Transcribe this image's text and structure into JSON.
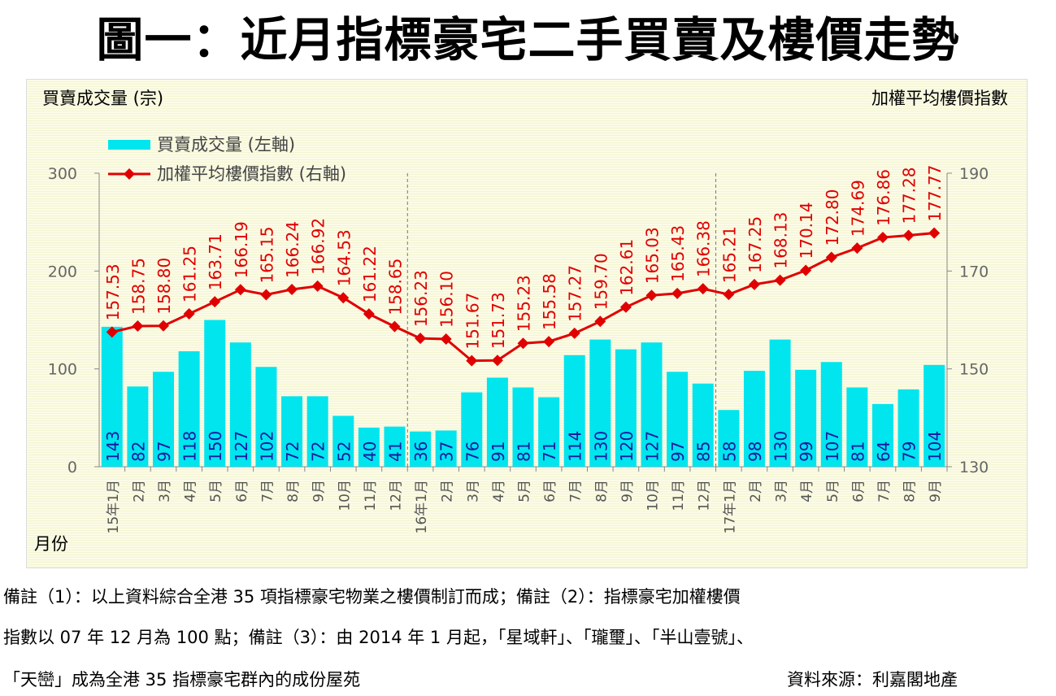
{
  "title": "圖一：近月指標豪宅二手買賣及樓價走勢",
  "chart_data": {
    "type": "bar+line",
    "title": "圖一：近月指標豪宅二手買賣及樓價走勢",
    "ylabel_left": "買賣成交量 (宗)",
    "ylabel_right": "加權平均樓價指數",
    "xlabel": "月份",
    "ylim_left": [
      0,
      300
    ],
    "yticks_left": [
      "0",
      "100",
      "200",
      "300"
    ],
    "ylim_right": [
      130,
      190
    ],
    "yticks_right": [
      "130",
      "150",
      "170",
      "190"
    ],
    "categories": [
      "15年1月",
      "2月",
      "3月",
      "4月",
      "5月",
      "6月",
      "7月",
      "8月",
      "9月",
      "10月",
      "11月",
      "12月",
      "16年1月",
      "2月",
      "3月",
      "4月",
      "5月",
      "6月",
      "7月",
      "8月",
      "9月",
      "10月",
      "11月",
      "12月",
      "17年1月",
      "2月",
      "3月",
      "4月",
      "5月",
      "6月",
      "7月",
      "8月",
      "9月"
    ],
    "series": [
      {
        "name": "買賣成交量 (左軸)",
        "type": "bar",
        "axis": "left",
        "color": "#00e5ee",
        "values": [
          143,
          82,
          97,
          118,
          150,
          127,
          102,
          72,
          72,
          52,
          40,
          41,
          36,
          37,
          76,
          91,
          81,
          71,
          114,
          130,
          120,
          127,
          97,
          85,
          58,
          98,
          130,
          99,
          107,
          81,
          64,
          79,
          104
        ]
      },
      {
        "name": "加權平均樓價指數 (右軸)",
        "type": "line",
        "axis": "right",
        "color": "#e00000",
        "values": [
          157.53,
          158.75,
          158.8,
          161.25,
          163.71,
          166.19,
          165.15,
          166.24,
          166.92,
          164.53,
          161.22,
          158.65,
          156.23,
          156.1,
          151.67,
          151.73,
          155.23,
          155.58,
          157.27,
          159.7,
          162.61,
          165.03,
          165.43,
          166.38,
          165.21,
          167.25,
          168.13,
          170.14,
          172.8,
          174.69,
          176.86,
          177.28,
          177.77
        ]
      }
    ],
    "legend": "top-left"
  },
  "notes": [
    "備註（1）：以上資料綜合全港 35 項指標豪宅物業之樓價制訂而成；備註（2）：指標豪宅加權樓價",
    "指數以 07 年 12 月為 100 點；備註（3）：由 2014 年 1 月起，「星域軒」、「瓏璽」、「半山壹號」、",
    "「天巒」成為全港 35 指標豪宅群內的成份屋苑"
  ],
  "source": "資料來源：利嘉閣地產"
}
